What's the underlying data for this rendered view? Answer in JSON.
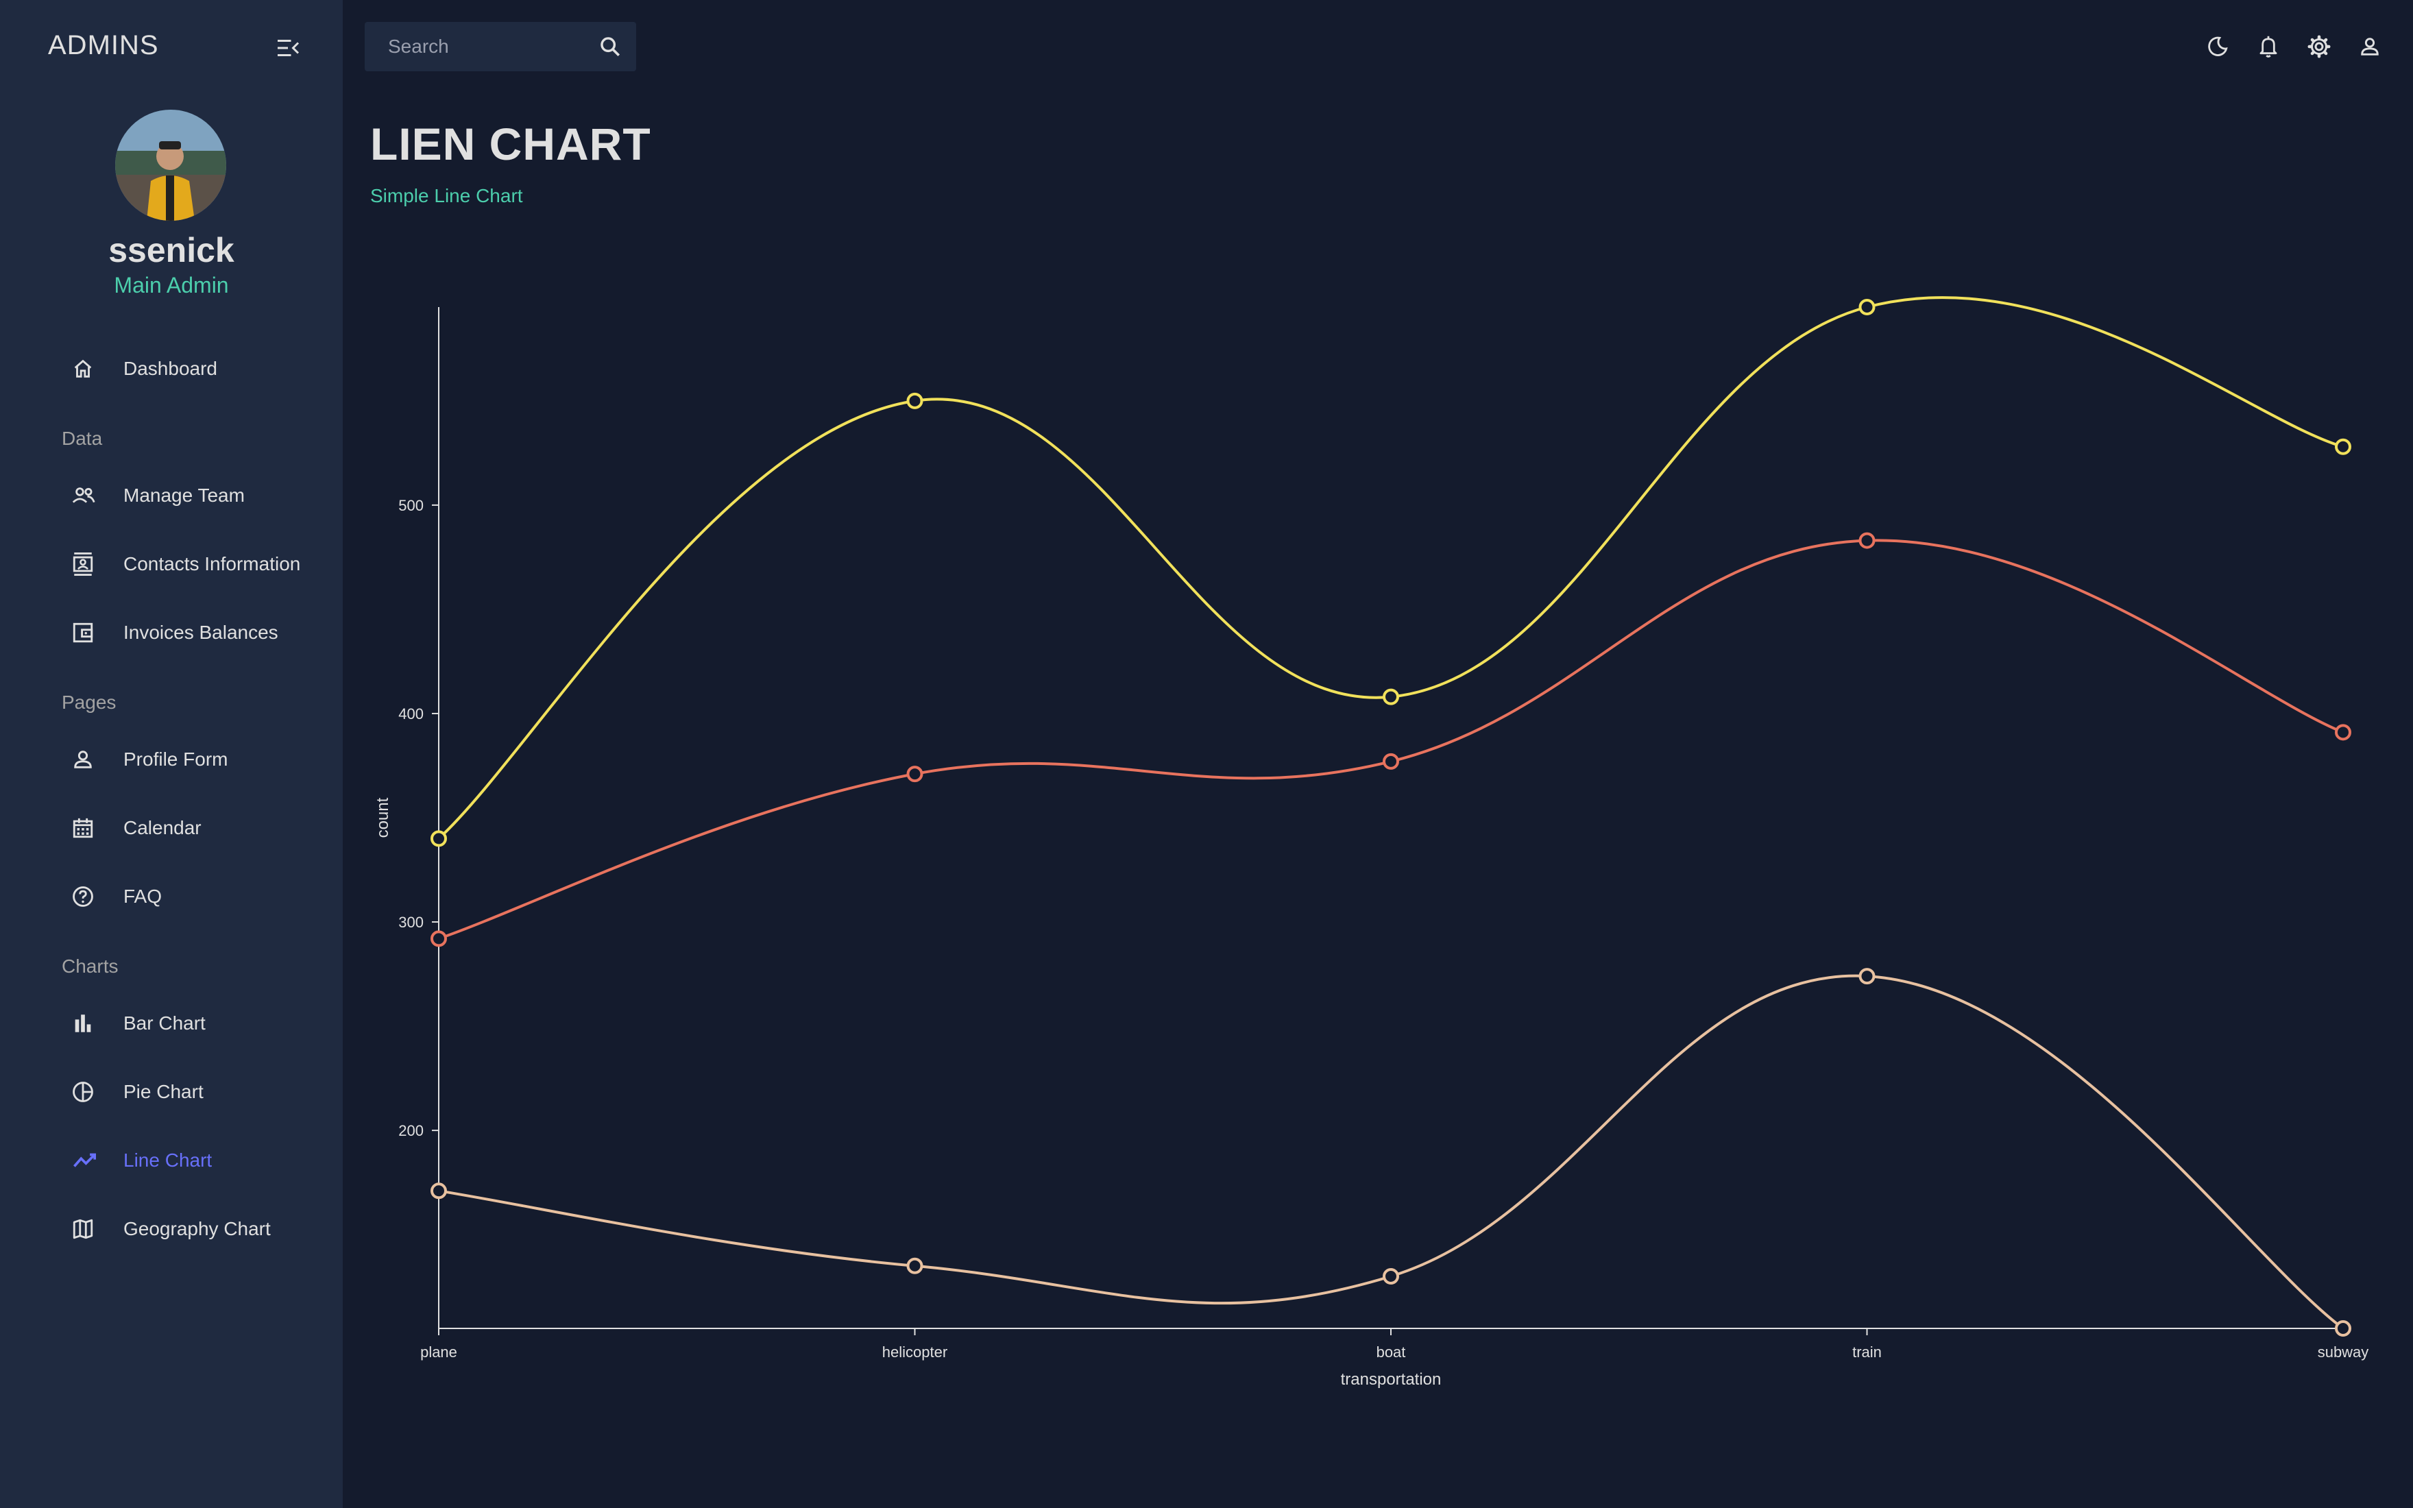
{
  "sidebar": {
    "brand": "ADMINS",
    "user": {
      "name": "ssenick",
      "role": "Main Admin"
    },
    "items": [
      {
        "label": "Dashboard",
        "icon": "home-icon"
      },
      {
        "label": "Manage Team",
        "icon": "people-icon"
      },
      {
        "label": "Contacts Information",
        "icon": "contacts-icon"
      },
      {
        "label": "Invoices Balances",
        "icon": "receipt-icon"
      },
      {
        "label": "Profile Form",
        "icon": "person-icon"
      },
      {
        "label": "Calendar",
        "icon": "calendar-icon"
      },
      {
        "label": "FAQ",
        "icon": "help-icon"
      },
      {
        "label": "Bar Chart",
        "icon": "bar-chart-icon"
      },
      {
        "label": "Pie Chart",
        "icon": "pie-chart-icon"
      },
      {
        "label": "Line Chart",
        "icon": "line-chart-icon",
        "active": true
      },
      {
        "label": "Geography Chart",
        "icon": "map-icon"
      }
    ],
    "sections": [
      "Data",
      "Pages",
      "Charts"
    ]
  },
  "topbar": {
    "search_placeholder": "Search",
    "icons": [
      "dark-mode-icon",
      "notifications-icon",
      "settings-icon",
      "profile-icon"
    ]
  },
  "header": {
    "title": "LIEN CHART",
    "subtitle": "Simple Line Chart"
  },
  "colors": {
    "background": "#141b2d",
    "sidebar": "#1f2a40",
    "accent_green": "#4cceac",
    "active_nav": "#6870fa"
  },
  "chart_data": {
    "type": "line",
    "categories": [
      "plane",
      "helicopter",
      "boat",
      "train",
      "subway"
    ],
    "xlabel": "transportation",
    "ylabel": "count",
    "ylim": [
      105,
      595
    ],
    "yticks": [
      200,
      300,
      400,
      500
    ],
    "grid": false,
    "series": [
      {
        "color": "#f1e15b",
        "values": [
          340,
          550,
          408,
          595,
          528
        ]
      },
      {
        "color": "#e8735e",
        "values": [
          292,
          371,
          377,
          483,
          391
        ]
      },
      {
        "color": "#e8c1a0",
        "values": [
          171,
          135,
          130,
          274,
          105
        ]
      }
    ]
  }
}
